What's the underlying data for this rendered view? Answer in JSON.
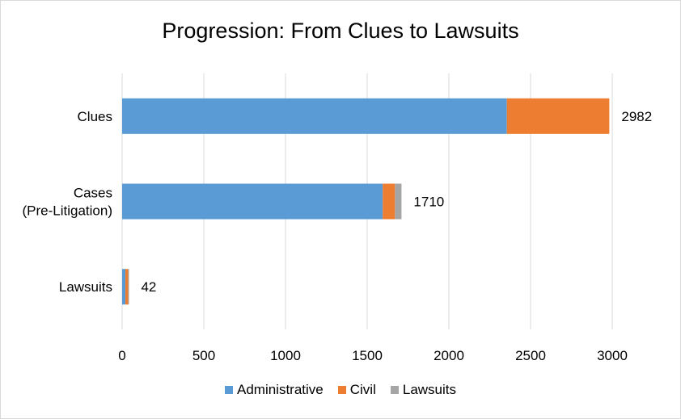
{
  "chart_data": {
    "type": "bar",
    "orientation": "horizontal",
    "stacked": true,
    "title": "Progression: From Clues to Lawsuits",
    "categories": [
      "Clues",
      "Cases\n(Pre-Litigation)",
      "Lawsuits"
    ],
    "series": [
      {
        "name": "Administrative",
        "color": "#5b9bd5",
        "values": [
          2355,
          1595,
          20
        ]
      },
      {
        "name": "Civil",
        "color": "#ed7d31",
        "values": [
          627,
          75,
          17
        ]
      },
      {
        "name": "Lawsuits",
        "color": "#a5a5a5",
        "values": [
          0,
          40,
          5
        ]
      }
    ],
    "totals": [
      2982,
      1710,
      42
    ],
    "xlim": [
      0,
      3000
    ],
    "xticks": [
      0,
      500,
      1000,
      1500,
      2000,
      2500,
      3000
    ],
    "grid": true,
    "legend_position": "bottom"
  }
}
